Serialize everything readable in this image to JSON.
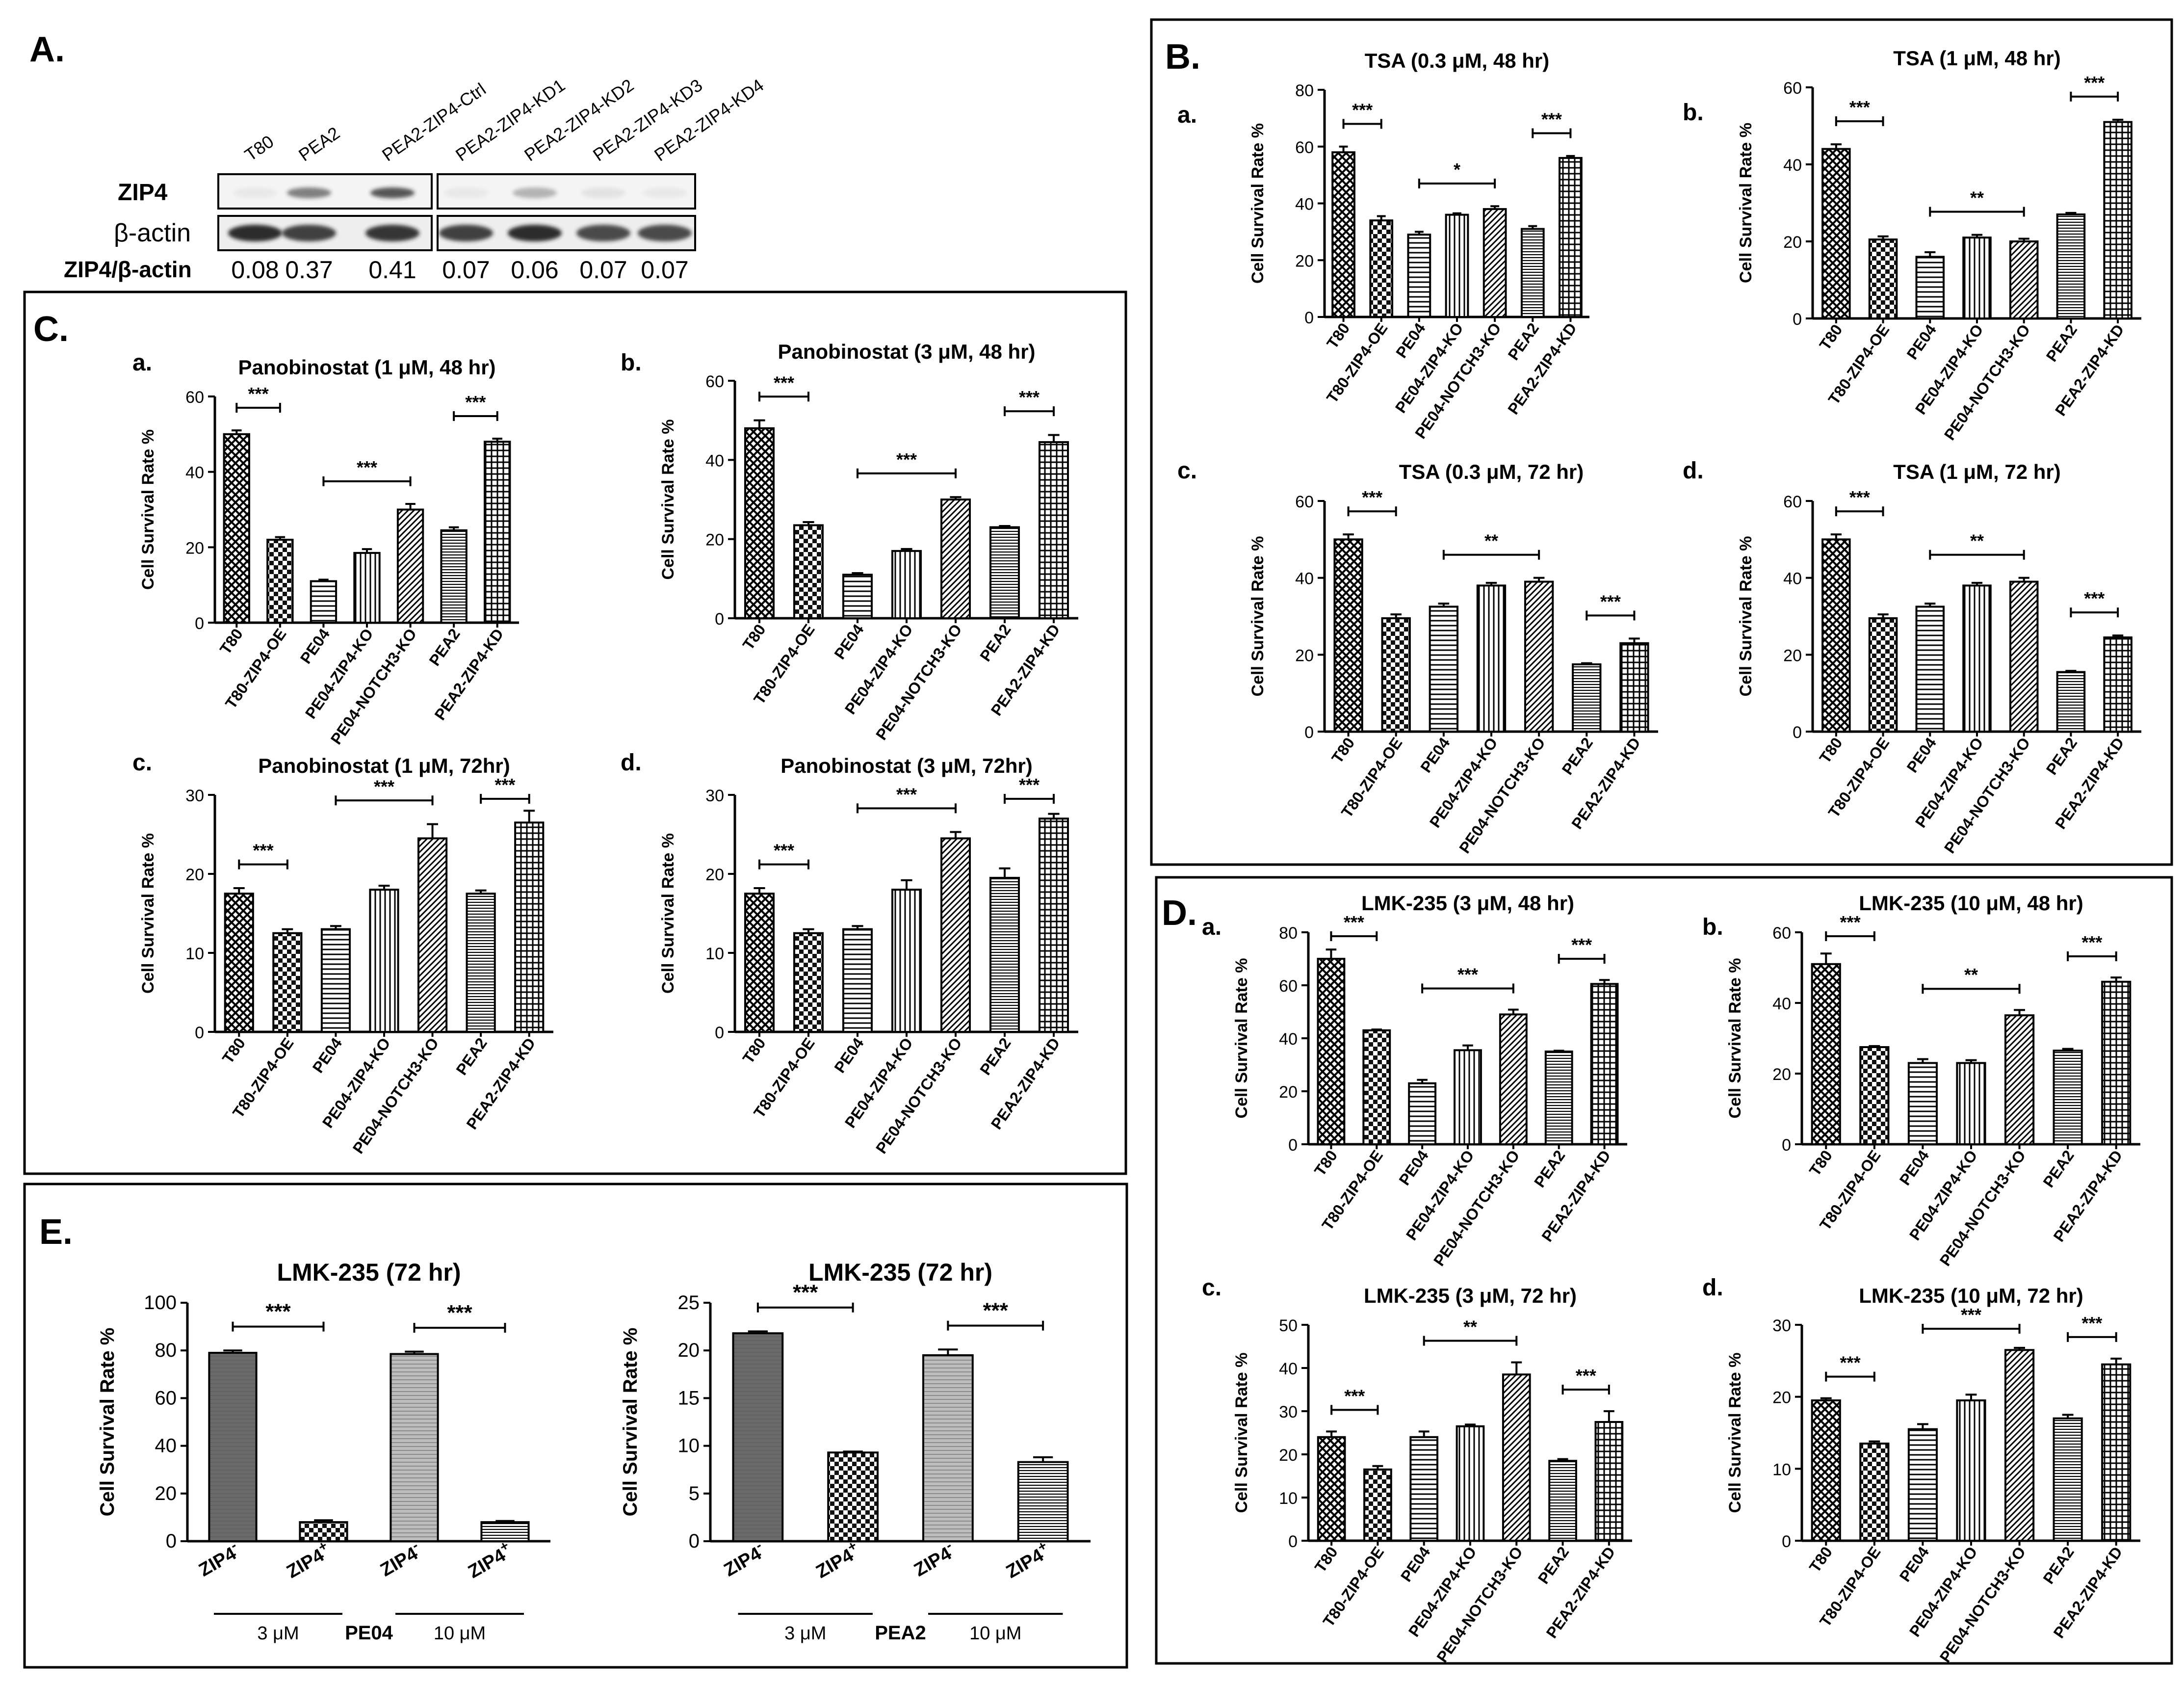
{
  "colors": {
    "axis": "#000000",
    "box": "#000000",
    "bar_dark": "#6f6f6f",
    "bar_mid": "#9a9a9a",
    "blot_band": "#222222"
  },
  "figure": {
    "panelA": {
      "label": "A.",
      "lanes": [
        "T80",
        "PEA2",
        "PEA2-ZIP4-Ctrl",
        "PEA2-ZIP4-KD1",
        "PEA2-ZIP4-KD2",
        "PEA2-ZIP4-KD3",
        "PEA2-ZIP4-KD4"
      ],
      "rows": [
        "ZIP4",
        "β-actin"
      ],
      "ratio_label": "ZIP4/β-actin",
      "ratios": [
        "0.08",
        "0.37",
        "0.41",
        "0.07",
        "0.06",
        "0.07",
        "0.07"
      ],
      "zip4_intensity": [
        0.05,
        0.55,
        0.75,
        0.05,
        0.3,
        0.08,
        0.05
      ]
    },
    "panel_labels": {
      "B": "B.",
      "C": "C.",
      "D": "D.",
      "E": "E."
    },
    "ylabel": "Cell Survival Rate %",
    "categories7": [
      "T80",
      "T80-ZIP4-OE",
      "PE04",
      "PE04-ZIP4-KO",
      "PE04-NOTCH3-KO",
      "PEA2",
      "PEA2-ZIP4-KD"
    ],
    "e_categories": [
      "ZIP4",
      "ZIP4"
    ],
    "e_superscripts": [
      "-",
      "+",
      "-",
      "+"
    ],
    "e_doses": [
      "3 μM",
      "10 μM"
    ],
    "e_groups": [
      "PE04",
      "PEA2"
    ]
  },
  "chart_data": [
    {
      "id": "B.a",
      "sub": "a.",
      "type": "bar",
      "title": "TSA (0.3 μM, 48 hr)",
      "ylabel": "Cell Survival Rate %",
      "categories": [
        "T80",
        "T80-ZIP4-OE",
        "PE04",
        "PE04-ZIP4-KO",
        "PE04-NOTCH3-KO",
        "PEA2",
        "PEA2-ZIP4-KD"
      ],
      "values": [
        58,
        34,
        29,
        36,
        38,
        31,
        56
      ],
      "errors": [
        2,
        1.5,
        1,
        0.5,
        1,
        1,
        0.7
      ],
      "ylim": [
        0,
        80
      ],
      "yticks": [
        0,
        20,
        40,
        60,
        80
      ],
      "significance": [
        {
          "from": 0,
          "to": 1,
          "label": "***"
        },
        {
          "from": 2,
          "to": 4,
          "label": "*"
        },
        {
          "from": 5,
          "to": 6,
          "label": "***"
        }
      ]
    },
    {
      "id": "B.b",
      "sub": "b.",
      "type": "bar",
      "title": "TSA (1 μM, 48 hr)",
      "ylabel": "Cell Survival Rate %",
      "categories": [
        "T80",
        "T80-ZIP4-OE",
        "PE04",
        "PE04-ZIP4-KO",
        "PE04-NOTCH3-KO",
        "PEA2",
        "PEA2-ZIP4-KD"
      ],
      "values": [
        44,
        20.5,
        16,
        21,
        20,
        27,
        51
      ],
      "errors": [
        1.2,
        0.8,
        1.2,
        0.7,
        0.7,
        0.4,
        0.6
      ],
      "ylim": [
        0,
        60
      ],
      "yticks": [
        0,
        20,
        40,
        60
      ],
      "significance": [
        {
          "from": 0,
          "to": 1,
          "label": "***"
        },
        {
          "from": 2,
          "to": 4,
          "label": "**"
        },
        {
          "from": 5,
          "to": 6,
          "label": "***"
        }
      ]
    },
    {
      "id": "B.c",
      "sub": "c.",
      "type": "bar",
      "title": "TSA (0.3 μM, 72 hr)",
      "ylabel": "Cell Survival Rate %",
      "categories": [
        "T80",
        "T80-ZIP4-OE",
        "PE04",
        "PE04-ZIP4-KO",
        "PE04-NOTCH3-KO",
        "PEA2",
        "PEA2-ZIP4-KD"
      ],
      "values": [
        50,
        29.5,
        32.5,
        38,
        39,
        17.5,
        23
      ],
      "errors": [
        1.3,
        1,
        0.8,
        0.7,
        1,
        0.3,
        1.2
      ],
      "ylim": [
        0,
        60
      ],
      "yticks": [
        0,
        20,
        40,
        60
      ],
      "significance": [
        {
          "from": 0,
          "to": 1,
          "label": "***"
        },
        {
          "from": 2,
          "to": 4,
          "label": "**"
        },
        {
          "from": 5,
          "to": 6,
          "label": "***"
        }
      ]
    },
    {
      "id": "B.d",
      "sub": "d.",
      "type": "bar",
      "title": "TSA (1 μM, 72 hr)",
      "ylabel": "Cell Survival Rate %",
      "categories": [
        "T80",
        "T80-ZIP4-OE",
        "PE04",
        "PE04-ZIP4-KO",
        "PE04-NOTCH3-KO",
        "PEA2",
        "PEA2-ZIP4-KD"
      ],
      "values": [
        50,
        29.5,
        32.5,
        38,
        39,
        15.5,
        24.5
      ],
      "errors": [
        1.3,
        1,
        0.8,
        0.7,
        1,
        0.3,
        0.5
      ],
      "ylim": [
        0,
        60
      ],
      "yticks": [
        0,
        20,
        40,
        60
      ],
      "significance": [
        {
          "from": 0,
          "to": 1,
          "label": "***"
        },
        {
          "from": 2,
          "to": 4,
          "label": "**"
        },
        {
          "from": 5,
          "to": 6,
          "label": "***"
        }
      ]
    },
    {
      "id": "C.a",
      "sub": "a.",
      "type": "bar",
      "title": "Panobinostat (1 μM, 48 hr)",
      "ylabel": "Cell Survival Rate %",
      "categories": [
        "T80",
        "T80-ZIP4-OE",
        "PE04",
        "PE04-ZIP4-KO",
        "PE04-NOTCH3-KO",
        "PEA2",
        "PEA2-ZIP4-KD"
      ],
      "values": [
        50,
        22,
        11,
        18.5,
        30,
        24.5,
        48
      ],
      "errors": [
        1,
        0.7,
        0.4,
        1,
        1.5,
        0.8,
        0.8
      ],
      "ylim": [
        0,
        60
      ],
      "yticks": [
        0,
        20,
        40,
        60
      ],
      "significance": [
        {
          "from": 0,
          "to": 1,
          "label": "***"
        },
        {
          "from": 2,
          "to": 4,
          "label": "***"
        },
        {
          "from": 5,
          "to": 6,
          "label": "***"
        }
      ]
    },
    {
      "id": "C.b",
      "sub": "b.",
      "type": "bar",
      "title": "Panobinostat (3 μM, 48 hr)",
      "ylabel": "Cell Survival Rate %",
      "categories": [
        "T80",
        "T80-ZIP4-OE",
        "PE04",
        "PE04-ZIP4-KO",
        "PE04-NOTCH3-KO",
        "PEA2",
        "PEA2-ZIP4-KD"
      ],
      "values": [
        48,
        23.5,
        11,
        17,
        30,
        23,
        44.5
      ],
      "errors": [
        2,
        0.8,
        0.4,
        0.5,
        0.6,
        0.3,
        1.8
      ],
      "ylim": [
        0,
        60
      ],
      "yticks": [
        0,
        20,
        40,
        60
      ],
      "significance": [
        {
          "from": 0,
          "to": 1,
          "label": "***"
        },
        {
          "from": 2,
          "to": 4,
          "label": "***"
        },
        {
          "from": 5,
          "to": 6,
          "label": "***"
        }
      ]
    },
    {
      "id": "C.c",
      "sub": "c.",
      "type": "bar",
      "title": "Panobinostat (1 μM, 72hr)",
      "ylabel": "Cell Survival Rate %",
      "categories": [
        "T80",
        "T80-ZIP4-OE",
        "PE04",
        "PE04-ZIP4-KO",
        "PE04-NOTCH3-KO",
        "PEA2",
        "PEA2-ZIP4-KD"
      ],
      "values": [
        17.5,
        12.5,
        13,
        18,
        24.5,
        17.5,
        26.5
      ],
      "errors": [
        0.7,
        0.5,
        0.4,
        0.5,
        1.8,
        0.4,
        1.5
      ],
      "ylim": [
        0,
        30
      ],
      "yticks": [
        0,
        10,
        20,
        30
      ],
      "significance": [
        {
          "from": 0,
          "to": 1,
          "label": "***"
        },
        {
          "from": 2,
          "to": 4,
          "label": "***"
        },
        {
          "from": 5,
          "to": 6,
          "label": "***"
        }
      ]
    },
    {
      "id": "C.d",
      "sub": "d.",
      "type": "bar",
      "title": "Panobinostat (3 μM, 72hr)",
      "ylabel": "Cell Survival Rate %",
      "categories": [
        "T80",
        "T80-ZIP4-OE",
        "PE04",
        "PE04-ZIP4-KO",
        "PE04-NOTCH3-KO",
        "PEA2",
        "PEA2-ZIP4-KD"
      ],
      "values": [
        17.5,
        12.5,
        13,
        18,
        24.5,
        19.5,
        27
      ],
      "errors": [
        0.7,
        0.5,
        0.4,
        1.2,
        0.8,
        1.2,
        0.6
      ],
      "ylim": [
        0,
        30
      ],
      "yticks": [
        0,
        10,
        20,
        30
      ],
      "significance": [
        {
          "from": 0,
          "to": 1,
          "label": "***"
        },
        {
          "from": 2,
          "to": 4,
          "label": "***"
        },
        {
          "from": 5,
          "to": 6,
          "label": "***"
        }
      ]
    },
    {
      "id": "D.a",
      "sub": "a.",
      "type": "bar",
      "title": "LMK-235 (3 μM, 48 hr)",
      "ylabel": "Cell Survival Rate %",
      "categories": [
        "T80",
        "T80-ZIP4-OE",
        "PE04",
        "PE04-ZIP4-KO",
        "PE04-NOTCH3-KO",
        "PEA2",
        "PEA2-ZIP4-KD"
      ],
      "values": [
        70,
        43,
        23,
        35.5,
        49,
        35,
        60.5
      ],
      "errors": [
        3.5,
        0.3,
        1.3,
        1.8,
        1.8,
        0.3,
        1.5
      ],
      "ylim": [
        0,
        80
      ],
      "yticks": [
        0,
        20,
        40,
        60,
        80
      ],
      "significance": [
        {
          "from": 0,
          "to": 1,
          "label": "***"
        },
        {
          "from": 2,
          "to": 4,
          "label": "***"
        },
        {
          "from": 5,
          "to": 6,
          "label": "***"
        }
      ]
    },
    {
      "id": "D.b",
      "sub": "b.",
      "type": "bar",
      "title": "LMK-235 (10 μM, 48 hr)",
      "ylabel": "Cell Survival Rate %",
      "categories": [
        "T80",
        "T80-ZIP4-OE",
        "PE04",
        "PE04-ZIP4-KO",
        "PE04-NOTCH3-KO",
        "PEA2",
        "PEA2-ZIP4-KD"
      ],
      "values": [
        51,
        27.5,
        23,
        23,
        36.5,
        26.5,
        46
      ],
      "errors": [
        3,
        0.3,
        1.1,
        0.8,
        1.5,
        0.5,
        1.2
      ],
      "ylim": [
        0,
        60
      ],
      "yticks": [
        0,
        20,
        40,
        60
      ],
      "significance": [
        {
          "from": 0,
          "to": 1,
          "label": "***"
        },
        {
          "from": 2,
          "to": 4,
          "label": "**"
        },
        {
          "from": 5,
          "to": 6,
          "label": "***"
        }
      ]
    },
    {
      "id": "D.c",
      "sub": "c.",
      "type": "bar",
      "title": "LMK-235 (3 μM, 72 hr)",
      "ylabel": "Cell Survival Rate %",
      "categories": [
        "T80",
        "T80-ZIP4-OE",
        "PE04",
        "PE04-ZIP4-KO",
        "PE04-NOTCH3-KO",
        "PEA2",
        "PEA2-ZIP4-KD"
      ],
      "values": [
        24,
        16.5,
        24,
        26.5,
        38.5,
        18.5,
        27.5
      ],
      "errors": [
        1.3,
        0.8,
        1.3,
        0.4,
        2.8,
        0.4,
        2.5
      ],
      "ylim": [
        0,
        50
      ],
      "yticks": [
        0,
        10,
        20,
        30,
        40,
        50
      ],
      "significance": [
        {
          "from": 0,
          "to": 1,
          "label": "***"
        },
        {
          "from": 2,
          "to": 4,
          "label": "**"
        },
        {
          "from": 5,
          "to": 6,
          "label": "***"
        }
      ]
    },
    {
      "id": "D.d",
      "sub": "d.",
      "type": "bar",
      "title": "LMK-235 (10 μM, 72 hr)",
      "ylabel": "Cell Survival Rate %",
      "categories": [
        "T80",
        "T80-ZIP4-OE",
        "PE04",
        "PE04-ZIP4-KO",
        "PE04-NOTCH3-KO",
        "PEA2",
        "PEA2-ZIP4-KD"
      ],
      "values": [
        19.5,
        13.5,
        15.5,
        19.5,
        26.5,
        17,
        24.5
      ],
      "errors": [
        0.3,
        0.3,
        0.7,
        0.8,
        0.3,
        0.5,
        0.8
      ],
      "ylim": [
        0,
        30
      ],
      "yticks": [
        0,
        10,
        20,
        30
      ],
      "significance": [
        {
          "from": 0,
          "to": 1,
          "label": "***"
        },
        {
          "from": 2,
          "to": 4,
          "label": "***"
        },
        {
          "from": 5,
          "to": 6,
          "label": "***"
        }
      ]
    },
    {
      "id": "E.1",
      "sub": "",
      "type": "bar",
      "title": "LMK-235 (72 hr)",
      "ylabel": "Cell Survival Rate %",
      "categories": [
        "ZIP4-",
        "ZIP4+",
        "ZIP4-",
        "ZIP4+"
      ],
      "values": [
        79,
        8,
        78.5,
        8
      ],
      "errors": [
        1,
        0.8,
        1,
        0.5
      ],
      "ylim": [
        0,
        100
      ],
      "yticks": [
        0,
        20,
        40,
        60,
        80,
        100
      ],
      "group_label": "PE04",
      "doses": [
        "3 μM",
        "10 μM"
      ],
      "significance": [
        {
          "from": 0,
          "to": 1,
          "label": "***"
        },
        {
          "from": 2,
          "to": 3,
          "label": "***"
        }
      ]
    },
    {
      "id": "E.2",
      "sub": "",
      "type": "bar",
      "title": "LMK-235 (72 hr)",
      "ylabel": "Cell Survival Rate %",
      "categories": [
        "ZIP4-",
        "ZIP4+",
        "ZIP4-",
        "ZIP4+"
      ],
      "values": [
        21.8,
        9.3,
        19.5,
        8.3
      ],
      "errors": [
        0.2,
        0.1,
        0.6,
        0.5
      ],
      "ylim": [
        0,
        25
      ],
      "yticks": [
        0,
        5,
        10,
        15,
        20,
        25
      ],
      "group_label": "PEA2",
      "doses": [
        "3 μM",
        "10 μM"
      ],
      "significance": [
        {
          "from": 0,
          "to": 1,
          "label": "***"
        },
        {
          "from": 2,
          "to": 3,
          "label": "***"
        }
      ]
    }
  ]
}
